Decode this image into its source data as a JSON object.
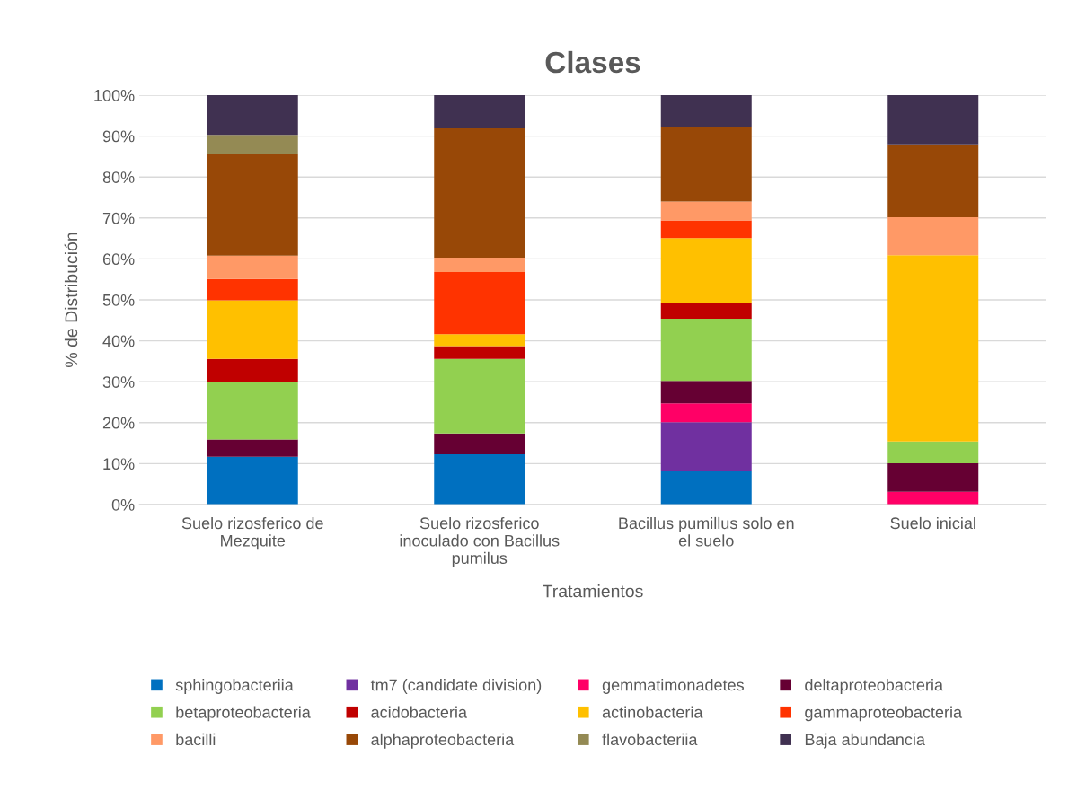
{
  "chart_data": {
    "type": "bar",
    "stacked": true,
    "title": "Clases",
    "xlabel": "Tratamientos",
    "ylabel": "% de Distribución",
    "categories": [
      "Suelo rizosferico de Mezquite",
      "Suelo rizosferico inoculado con Bacillus pumilus",
      "Bacillus pumillus solo en el suelo",
      "Suelo inicial"
    ],
    "ylim": [
      0,
      100
    ],
    "yticks": [
      {
        "value": 0,
        "label": "0%"
      },
      {
        "value": 10,
        "label": "10%"
      },
      {
        "value": 20,
        "label": "20%"
      },
      {
        "value": 30,
        "label": "30%"
      },
      {
        "value": 40,
        "label": "40%"
      },
      {
        "value": 50,
        "label": "50%"
      },
      {
        "value": 60,
        "label": "60%"
      },
      {
        "value": 70,
        "label": "70%"
      },
      {
        "value": 80,
        "label": "80%"
      },
      {
        "value": 90,
        "label": "90%"
      },
      {
        "value": 100,
        "label": "100%"
      }
    ],
    "grid": "y",
    "legend": "bottom",
    "series": [
      {
        "name": "sphingobacteriia",
        "color": "#0070c0",
        "values": [
          11.7,
          12.3,
          8.1,
          null
        ]
      },
      {
        "name": "tm7 (candidate division)",
        "color": "#7030a0",
        "values": [
          null,
          null,
          12.0,
          null
        ]
      },
      {
        "name": "gemmatimonadetes",
        "color": "#ff0066",
        "values": [
          null,
          null,
          4.6,
          3.1
        ]
      },
      {
        "name": "deltaproteobacteria",
        "color": "#660033",
        "values": [
          4.2,
          5.1,
          5.5,
          7.0
        ]
      },
      {
        "name": "betaproteobacteria",
        "color": "#92d050",
        "values": [
          13.9,
          18.2,
          15.2,
          5.3
        ]
      },
      {
        "name": "acidobacteria",
        "color": "#c00000",
        "values": [
          5.8,
          3.1,
          3.8,
          null
        ]
      },
      {
        "name": "actinobacteria",
        "color": "#ffc000",
        "values": [
          14.3,
          2.9,
          15.9,
          45.5
        ]
      },
      {
        "name": "gammaproteobacteria",
        "color": "#ff3300",
        "values": [
          5.2,
          15.2,
          4.3,
          null
        ]
      },
      {
        "name": "bacilli",
        "color": "#ff9966",
        "values": [
          5.7,
          3.5,
          4.6,
          9.3
        ]
      },
      {
        "name": "alphaproteobacteria",
        "color": "#984807",
        "values": [
          24.8,
          31.6,
          18.1,
          17.8
        ]
      },
      {
        "name": "flavobacteriia",
        "color": "#948a54",
        "values": [
          4.7,
          null,
          null,
          null
        ]
      },
      {
        "name": "Baja abundancia",
        "color": "#403151",
        "values": [
          9.7,
          8.1,
          7.9,
          12.0
        ]
      }
    ]
  }
}
